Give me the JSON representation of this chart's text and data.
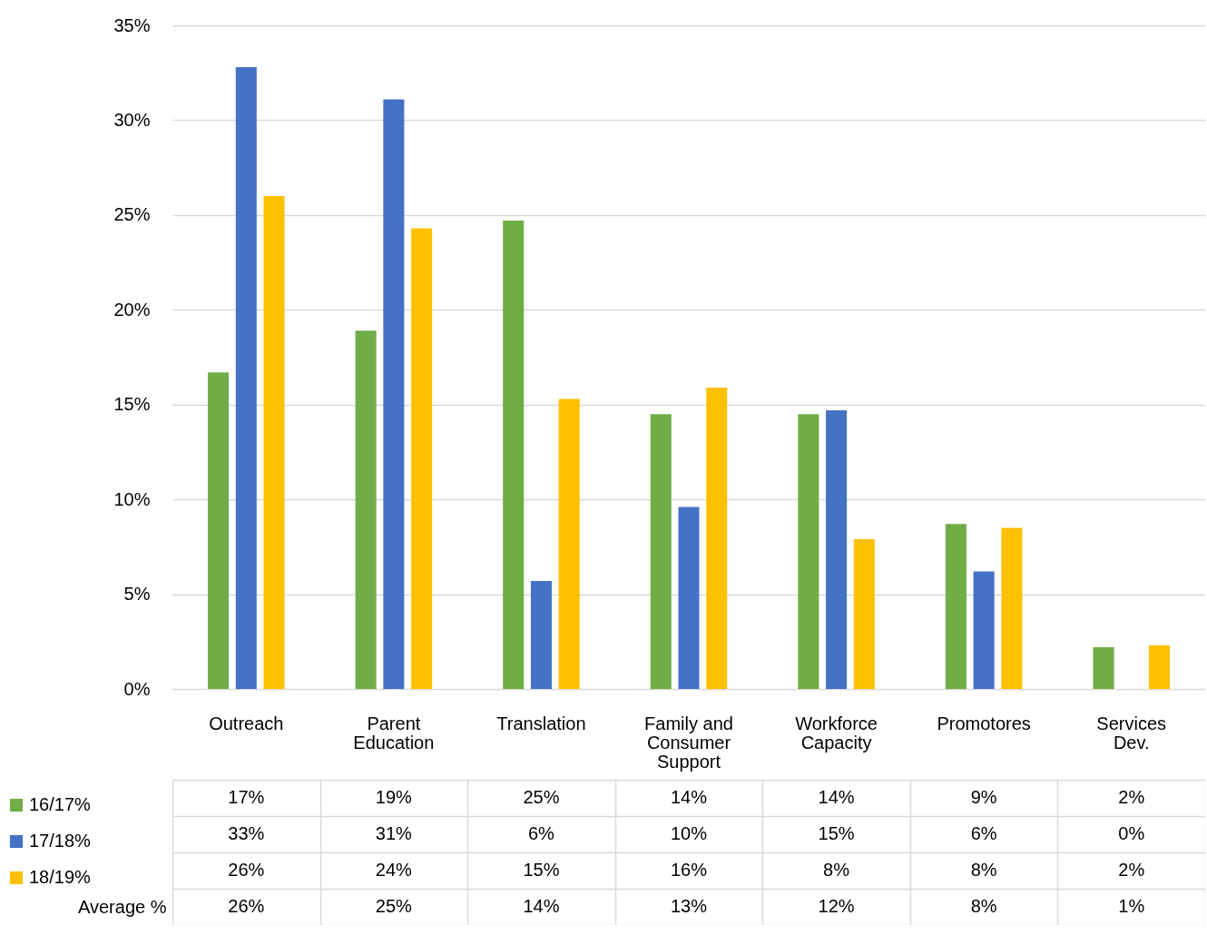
{
  "chart_data": {
    "type": "bar",
    "categories": [
      "Outreach",
      "Parent Education",
      "Translation",
      "Family and Consumer Support",
      "Workforce Capacity",
      "Promotores",
      "Services Dev."
    ],
    "series": [
      {
        "name": "16/17%",
        "color": "#70ad47",
        "values": [
          16.7,
          18.9,
          24.7,
          14.5,
          14.5,
          8.7,
          2.2
        ],
        "value_labels": [
          "17%",
          "19%",
          "25%",
          "14%",
          "14%",
          "9%",
          "2%"
        ]
      },
      {
        "name": "17/18%",
        "color": "#4472c4",
        "values": [
          32.8,
          31.1,
          5.7,
          9.6,
          14.7,
          6.2,
          0
        ],
        "value_labels": [
          "33%",
          "31%",
          "6%",
          "10%",
          "15%",
          "6%",
          "0%"
        ]
      },
      {
        "name": "18/19%",
        "color": "#ffc000",
        "values": [
          26.0,
          24.3,
          15.3,
          15.9,
          7.9,
          8.5,
          2.3
        ],
        "value_labels": [
          "26%",
          "24%",
          "15%",
          "16%",
          "8%",
          "8%",
          "2%"
        ]
      }
    ],
    "annotations": [
      "Average %",
      "26%",
      "25%",
      "14%",
      "13%",
      "12%",
      "8%",
      "1%"
    ],
    "ylim": [
      0,
      35
    ],
    "yticks": [
      {
        "value": 0,
        "label": "0%"
      },
      {
        "value": 5,
        "label": "5%"
      },
      {
        "value": 10,
        "label": "10%"
      },
      {
        "value": 15,
        "label": "15%"
      },
      {
        "value": 20,
        "label": "20%"
      },
      {
        "value": 25,
        "label": "25%"
      },
      {
        "value": 30,
        "label": "30%"
      },
      {
        "value": 35,
        "label": "35%"
      }
    ],
    "grid": "y",
    "legend": "bottom left"
  }
}
